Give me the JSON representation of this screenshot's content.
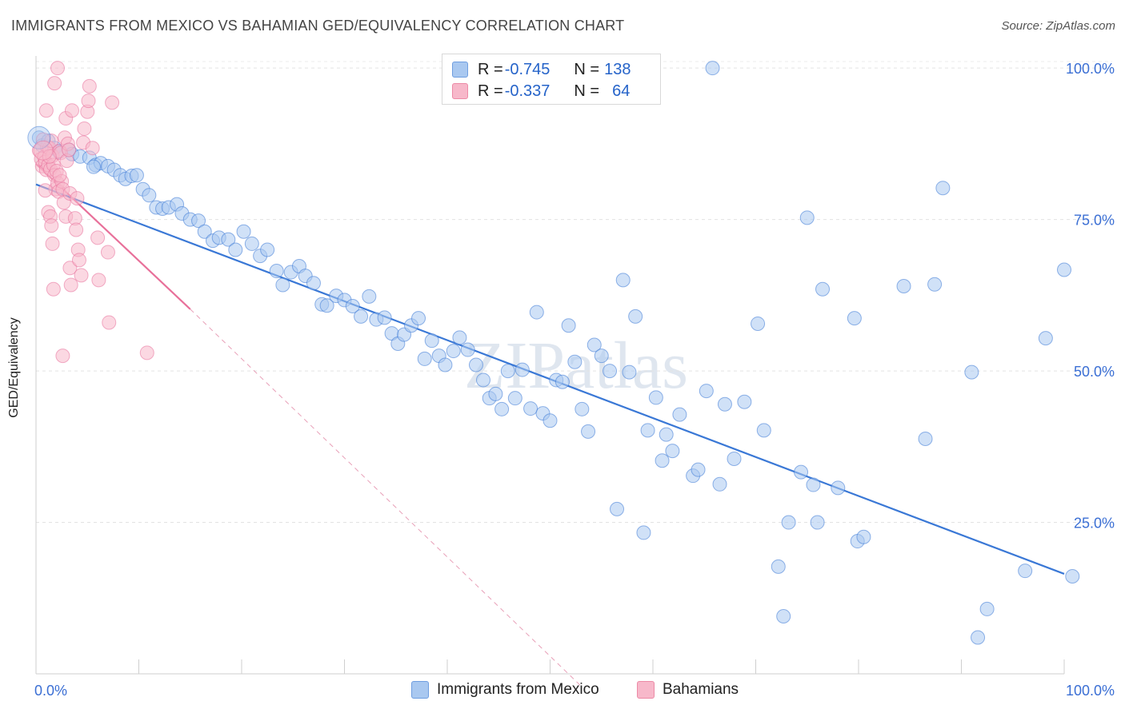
{
  "title": "IMMIGRANTS FROM MEXICO VS BAHAMIAN GED/EQUIVALENCY CORRELATION CHART",
  "source": "Source: ZipAtlas.com",
  "watermark": "ZIPatlas",
  "legend": {
    "rows": [
      {
        "r_label": "R = ",
        "r_value": "-0.745",
        "n_label": "N = ",
        "n_value": "138",
        "color": "#a9c8f0",
        "border": "#6f9ee0"
      },
      {
        "r_label": "R = ",
        "r_value": "-0.337",
        "n_label": "N = ",
        "n_value": "64",
        "color": "#f7b8ca",
        "border": "#ec8aa6"
      }
    ]
  },
  "bottom_legend": [
    {
      "label": "Immigrants from Mexico",
      "color": "#a9c8f0",
      "border": "#6f9ee0"
    },
    {
      "label": "Bahamians",
      "color": "#f7b8ca",
      "border": "#ec8aa6"
    }
  ],
  "chart_data": {
    "type": "scatter",
    "title": "IMMIGRANTS FROM MEXICO VS BAHAMIAN GED/EQUIVALENCY CORRELATION CHART",
    "xlabel": "",
    "ylabel": "GED/Equivalency",
    "xlim": [
      0,
      100
    ],
    "ylim": [
      0,
      102
    ],
    "x_tick_labels": [
      "0.0%",
      "100.0%"
    ],
    "y_ticks": [
      25,
      50,
      75,
      100
    ],
    "y_tick_labels": [
      "25.0%",
      "50.0%",
      "75.0%",
      "100.0%"
    ],
    "grid": true,
    "colors": {
      "blue": "#3a78d6",
      "pink": "#e8709a"
    },
    "series": [
      {
        "name": "Immigrants from Mexico",
        "color": "#3a78d6",
        "fill": "#a9c8f0",
        "trend": {
          "x": [
            0,
            100
          ],
          "y": [
            80.8,
            16.5
          ]
        },
        "points": [
          [
            0.3,
            88.5
          ],
          [
            0.6,
            87.2
          ],
          [
            1.2,
            88
          ],
          [
            1.8,
            86.8
          ],
          [
            2.2,
            86.2
          ],
          [
            3.2,
            86.5
          ],
          [
            3.5,
            85.8
          ],
          [
            4.3,
            85.4
          ],
          [
            5.2,
            85.2
          ],
          [
            5.8,
            84
          ],
          [
            6.3,
            84.3
          ],
          [
            7,
            83.8
          ],
          [
            7.6,
            83.2
          ],
          [
            8.2,
            82.3
          ],
          [
            8.7,
            81.7
          ],
          [
            9.3,
            82.2
          ],
          [
            9.8,
            82.3
          ],
          [
            10.4,
            80
          ],
          [
            11,
            79
          ],
          [
            11.7,
            77
          ],
          [
            12.3,
            76.8
          ],
          [
            12.9,
            77
          ],
          [
            13.7,
            77.5
          ],
          [
            14.2,
            76
          ],
          [
            15,
            75
          ],
          [
            15.8,
            74.8
          ],
          [
            16.4,
            73
          ],
          [
            17.2,
            71.5
          ],
          [
            17.8,
            72
          ],
          [
            18.7,
            71.7
          ],
          [
            19.4,
            70
          ],
          [
            20.2,
            73
          ],
          [
            21,
            71
          ],
          [
            21.8,
            69
          ],
          [
            22.5,
            70
          ],
          [
            23.4,
            66.5
          ],
          [
            24,
            64.2
          ],
          [
            24.8,
            66.3
          ],
          [
            25.6,
            67.3
          ],
          [
            26.2,
            65.7
          ],
          [
            27,
            64.5
          ],
          [
            27.8,
            61
          ],
          [
            28.3,
            60.8
          ],
          [
            29.2,
            62.4
          ],
          [
            30,
            61.7
          ],
          [
            30.8,
            60.7
          ],
          [
            31.6,
            59
          ],
          [
            32.4,
            62.3
          ],
          [
            33.1,
            58.5
          ],
          [
            33.9,
            58.8
          ],
          [
            34.6,
            56.2
          ],
          [
            35.2,
            54.5
          ],
          [
            35.8,
            56
          ],
          [
            36.5,
            57.5
          ],
          [
            37.2,
            58.7
          ],
          [
            37.8,
            52
          ],
          [
            38.5,
            55
          ],
          [
            39.2,
            52.5
          ],
          [
            39.8,
            51
          ],
          [
            40.6,
            53.3
          ],
          [
            41.2,
            55.5
          ],
          [
            42,
            53.5
          ],
          [
            42.8,
            51
          ],
          [
            43.5,
            48.5
          ],
          [
            44.1,
            45.5
          ],
          [
            44.7,
            46.2
          ],
          [
            45.3,
            43.7
          ],
          [
            45.9,
            50
          ],
          [
            46.6,
            45.5
          ],
          [
            47.3,
            50.2
          ],
          [
            48.1,
            43.8
          ],
          [
            48.7,
            59.7
          ],
          [
            49.3,
            43
          ],
          [
            50,
            41.8
          ],
          [
            50.6,
            48.5
          ],
          [
            51.2,
            48.2
          ],
          [
            51.8,
            57.5
          ],
          [
            52.4,
            51.5
          ],
          [
            53.1,
            43.7
          ],
          [
            53.7,
            40
          ],
          [
            54.3,
            54.3
          ],
          [
            55,
            52.5
          ],
          [
            55.8,
            50
          ],
          [
            56.5,
            27.2
          ],
          [
            57.1,
            65
          ],
          [
            57.7,
            49.8
          ],
          [
            58.3,
            59
          ],
          [
            59.1,
            23.3
          ],
          [
            59.5,
            40.2
          ],
          [
            60.3,
            45.6
          ],
          [
            60.9,
            35.2
          ],
          [
            61.3,
            39.5
          ],
          [
            61.9,
            36.8
          ],
          [
            62.6,
            42.8
          ],
          [
            63.9,
            32.7
          ],
          [
            64.4,
            33.7
          ],
          [
            65.2,
            46.7
          ],
          [
            65.8,
            100
          ],
          [
            66.5,
            31.3
          ],
          [
            67,
            44.5
          ],
          [
            67.9,
            35.5
          ],
          [
            68.9,
            44.9
          ],
          [
            70.2,
            57.8
          ],
          [
            70.8,
            40.2
          ],
          [
            72.2,
            17.7
          ],
          [
            72.7,
            9.5
          ],
          [
            73.2,
            25
          ],
          [
            74.4,
            33.3
          ],
          [
            75,
            75.3
          ],
          [
            75.6,
            31.2
          ],
          [
            76,
            25
          ],
          [
            76.5,
            63.5
          ],
          [
            78,
            30.7
          ],
          [
            79.6,
            58.7
          ],
          [
            79.9,
            21.9
          ],
          [
            80.5,
            22.6
          ],
          [
            84.4,
            64
          ],
          [
            86.5,
            38.8
          ],
          [
            87.4,
            64.3
          ],
          [
            88.2,
            80.2
          ],
          [
            91,
            49.8
          ],
          [
            91.6,
            6
          ],
          [
            92.5,
            10.7
          ],
          [
            96.2,
            17
          ],
          [
            98.2,
            55.4
          ],
          [
            100,
            66.7
          ],
          [
            100.8,
            16.1
          ],
          [
            5.6,
            83.7
          ]
        ]
      },
      {
        "name": "Bahamians",
        "color": "#e8709a",
        "fill": "#f7b8ca",
        "trend": {
          "x": [
            0,
            15
          ],
          "y": [
            84.2,
            60.2
          ]
        },
        "trend_dashed": {
          "x": [
            15,
            53
          ],
          "y": [
            60.2,
            -2
          ]
        },
        "points": [
          [
            0.3,
            86.4
          ],
          [
            0.5,
            85
          ],
          [
            0.6,
            83.8
          ],
          [
            0.8,
            85.3
          ],
          [
            0.9,
            84.5
          ],
          [
            1,
            83.2
          ],
          [
            1.1,
            87
          ],
          [
            1.2,
            84
          ],
          [
            1.3,
            86.8
          ],
          [
            1.4,
            83.3
          ],
          [
            1.5,
            88
          ],
          [
            1.6,
            85.5
          ],
          [
            1.7,
            84
          ],
          [
            1.8,
            82.3
          ],
          [
            1.9,
            80
          ],
          [
            2,
            83
          ],
          [
            2.1,
            81
          ],
          [
            2.2,
            79.6
          ],
          [
            2.3,
            86.3
          ],
          [
            2.4,
            86
          ],
          [
            2.5,
            81.3
          ],
          [
            2.6,
            80
          ],
          [
            2.7,
            77.8
          ],
          [
            2.8,
            88.5
          ],
          [
            2.9,
            91.7
          ],
          [
            3,
            84.7
          ],
          [
            3.1,
            87.5
          ],
          [
            3.2,
            86.5
          ],
          [
            3.3,
            79.3
          ],
          [
            1.2,
            76.2
          ],
          [
            1.4,
            75.5
          ],
          [
            1.5,
            74
          ],
          [
            1.6,
            71
          ],
          [
            1.7,
            63.5
          ],
          [
            1.8,
            97.5
          ],
          [
            2.1,
            100
          ],
          [
            2.6,
            52.5
          ],
          [
            2.9,
            75.5
          ],
          [
            3.3,
            67
          ],
          [
            3.4,
            64.2
          ],
          [
            3.8,
            75.2
          ],
          [
            3.9,
            73.3
          ],
          [
            4.1,
            70
          ],
          [
            4.2,
            68.3
          ],
          [
            4.4,
            65.8
          ],
          [
            4.6,
            87.7
          ],
          [
            4.7,
            90
          ],
          [
            5,
            92.8
          ],
          [
            5.1,
            94.6
          ],
          [
            5.2,
            97
          ],
          [
            5.5,
            86.8
          ],
          [
            6,
            72
          ],
          [
            6.1,
            65
          ],
          [
            7,
            69.6
          ],
          [
            7.1,
            58
          ],
          [
            7.4,
            94.3
          ],
          [
            10.8,
            53
          ],
          [
            1,
            93
          ],
          [
            0.7,
            88.2
          ],
          [
            2.3,
            82.3
          ],
          [
            3.5,
            93
          ],
          [
            1.3,
            85.4
          ],
          [
            0.9,
            79.8
          ],
          [
            4,
            78.5
          ]
        ]
      }
    ]
  }
}
